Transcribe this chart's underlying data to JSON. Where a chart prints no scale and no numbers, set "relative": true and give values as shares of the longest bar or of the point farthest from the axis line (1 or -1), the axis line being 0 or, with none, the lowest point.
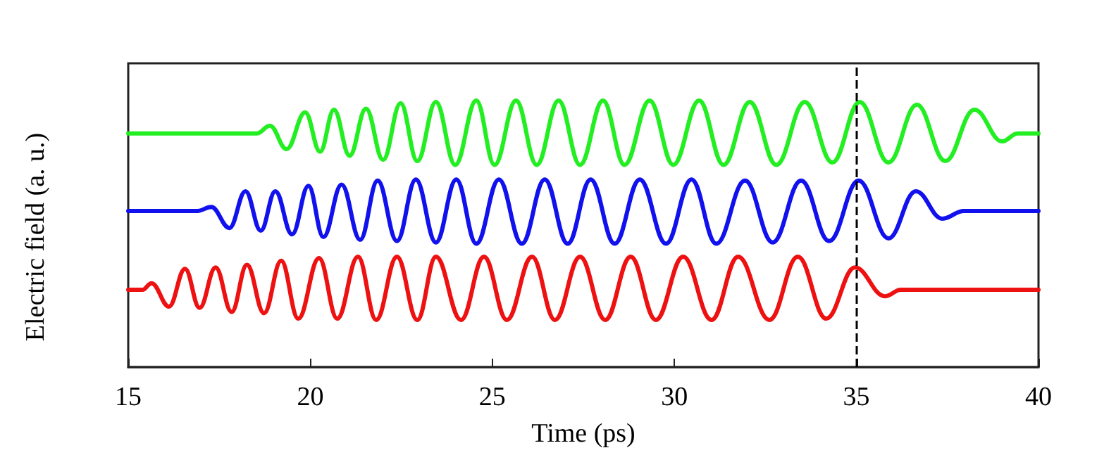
{
  "chart_data": {
    "type": "line",
    "xlabel": "Time (ps)",
    "ylabel": "Electric field (a. u.)",
    "relative": true,
    "marker": "none",
    "xlim": [
      15,
      40
    ],
    "xticks": [
      15,
      20,
      25,
      30,
      35,
      40
    ],
    "ref_lines": [
      {
        "axis": "x",
        "value": 35,
        "color": "#000000",
        "line_style": "dashed"
      }
    ],
    "series": [
      {
        "color": "#22ee22",
        "x": [
          15,
          18.54,
          18.89,
          19.35,
          19.86,
          20.27,
          20.65,
          21.08,
          21.53,
          22.0,
          22.48,
          22.94,
          23.45,
          23.98,
          24.56,
          25.06,
          25.65,
          26.22,
          26.82,
          27.41,
          28.04,
          28.63,
          29.32,
          29.97,
          30.68,
          31.35,
          32.07,
          32.8,
          33.58,
          34.34,
          35.09,
          35.88,
          36.66,
          37.44,
          38.24,
          39.0,
          39.43,
          40
        ],
        "values": [
          0.877,
          0.877,
          0.906,
          0.818,
          0.956,
          0.808,
          0.966,
          0.793,
          0.97,
          0.778,
          0.99,
          0.773,
          0.995,
          0.759,
          1.0,
          0.759,
          1.0,
          0.759,
          1.0,
          0.759,
          1.0,
          0.759,
          1.0,
          0.759,
          1.0,
          0.759,
          0.995,
          0.759,
          0.995,
          0.768,
          0.995,
          0.768,
          0.985,
          0.773,
          0.966,
          0.847,
          0.877,
          0.877
        ]
      },
      {
        "color": "#1111ee",
        "x": [
          15,
          16.9,
          17.28,
          17.78,
          18.22,
          18.64,
          19.04,
          19.5,
          19.95,
          20.36,
          20.86,
          21.37,
          21.85,
          22.38,
          22.9,
          23.45,
          24.01,
          24.56,
          25.18,
          25.81,
          26.44,
          27.07,
          27.7,
          28.36,
          29.05,
          29.77,
          30.47,
          31.15,
          31.94,
          32.7,
          33.48,
          34.25,
          35.06,
          35.88,
          36.63,
          37.36,
          37.95,
          40
        ],
        "values": [
          0.586,
          0.586,
          0.601,
          0.522,
          0.66,
          0.512,
          0.66,
          0.498,
          0.68,
          0.488,
          0.685,
          0.478,
          0.7,
          0.473,
          0.704,
          0.468,
          0.704,
          0.463,
          0.704,
          0.463,
          0.704,
          0.463,
          0.704,
          0.463,
          0.704,
          0.463,
          0.704,
          0.463,
          0.7,
          0.468,
          0.7,
          0.473,
          0.7,
          0.483,
          0.66,
          0.557,
          0.586,
          0.586
        ]
      },
      {
        "color": "#ee1111",
        "x": [
          15,
          15.39,
          15.64,
          16.12,
          16.56,
          16.96,
          17.4,
          17.84,
          18.26,
          18.73,
          19.2,
          19.67,
          20.24,
          20.74,
          21.31,
          21.81,
          22.38,
          22.94,
          23.45,
          24.14,
          24.77,
          25.4,
          26.09,
          26.72,
          27.41,
          28.1,
          28.8,
          29.49,
          30.24,
          31.02,
          31.75,
          32.61,
          33.39,
          34.17,
          34.96,
          35.78,
          36.22,
          40
        ],
        "values": [
          0.29,
          0.29,
          0.315,
          0.227,
          0.369,
          0.222,
          0.374,
          0.207,
          0.384,
          0.202,
          0.399,
          0.182,
          0.409,
          0.182,
          0.414,
          0.177,
          0.414,
          0.177,
          0.414,
          0.177,
          0.414,
          0.177,
          0.414,
          0.177,
          0.414,
          0.177,
          0.414,
          0.177,
          0.414,
          0.177,
          0.414,
          0.177,
          0.414,
          0.182,
          0.374,
          0.266,
          0.29,
          0.29
        ]
      }
    ]
  }
}
